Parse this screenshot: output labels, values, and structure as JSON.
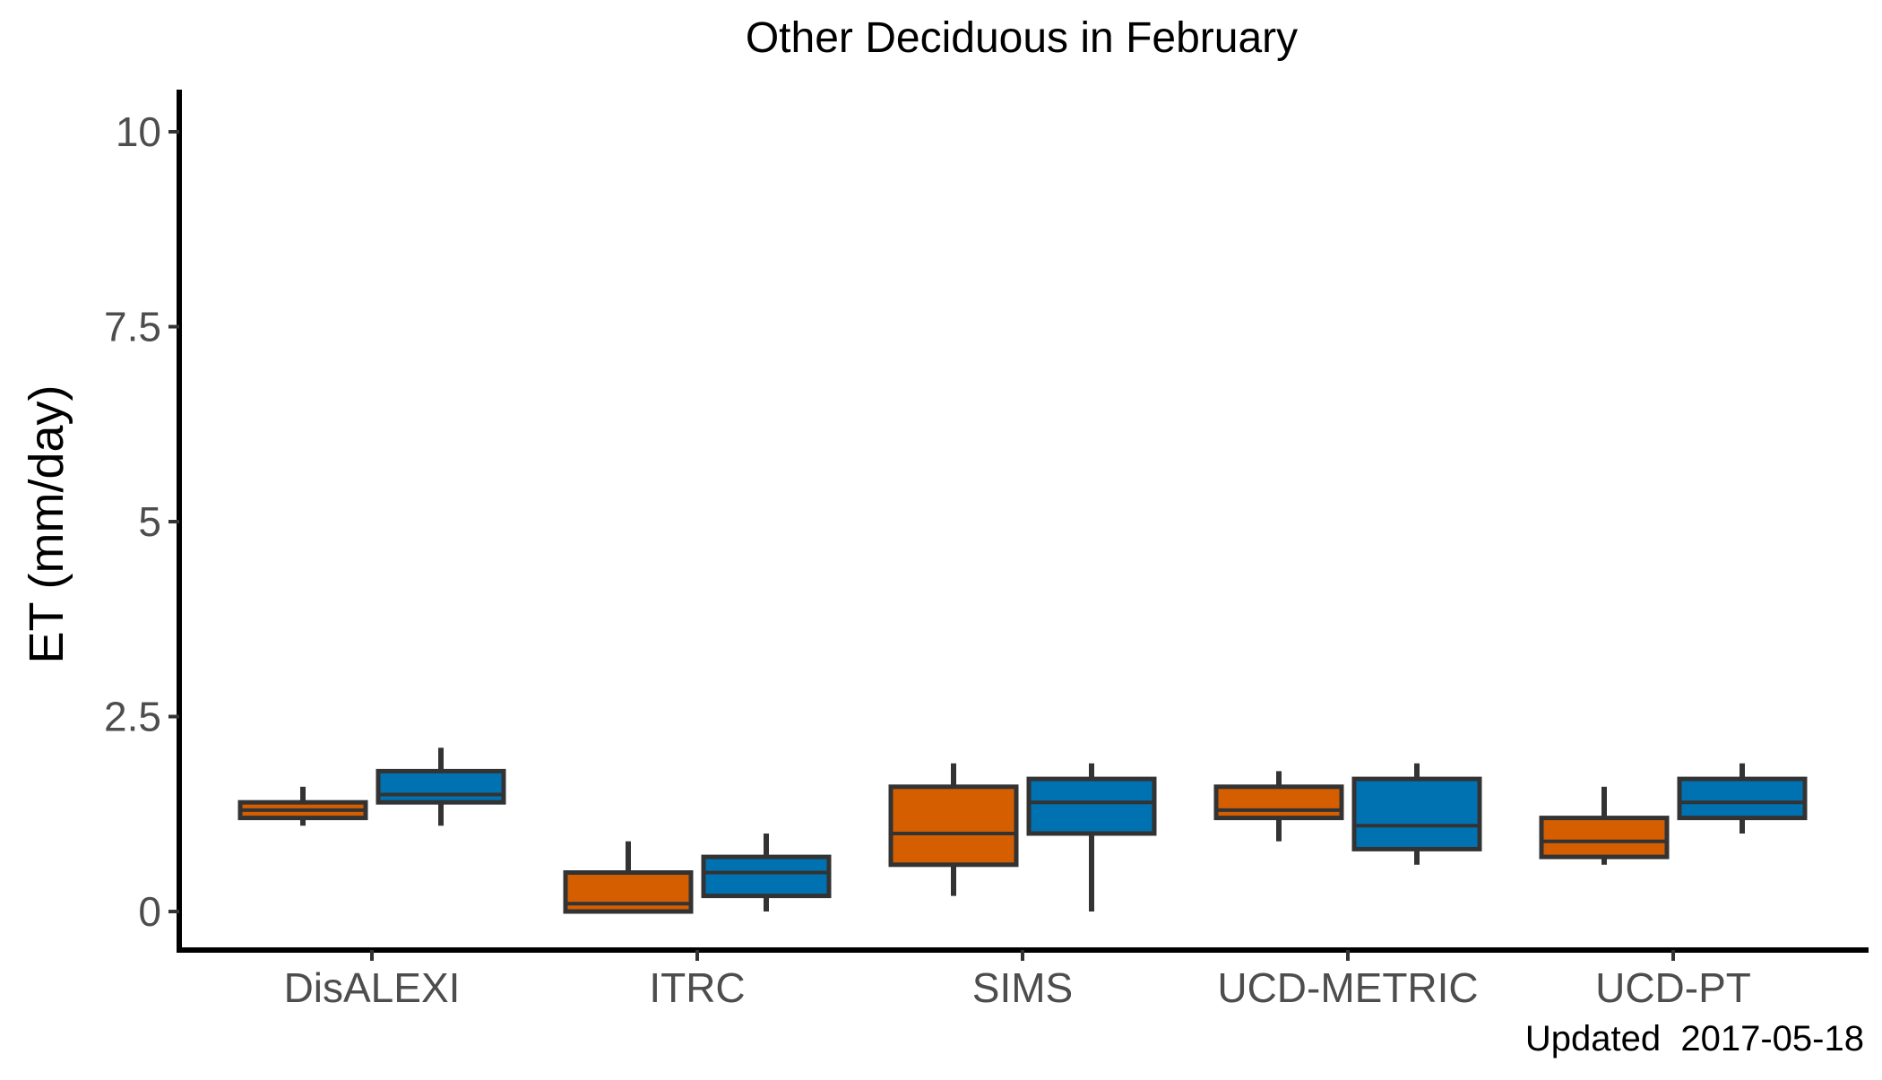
{
  "chart_data": {
    "type": "box",
    "title": "Other Deciduous in February",
    "ylabel": "ET (mm/day)",
    "xlabel": "",
    "ylim": [
      -0.5,
      10.5
    ],
    "yticks": [
      0,
      2.5,
      5,
      7.5,
      10
    ],
    "ytick_labels": [
      "0",
      "2.5",
      "5",
      "7.5",
      "10"
    ],
    "grid": false,
    "legend": "none",
    "categories": [
      "DisALEXI",
      "ITRC",
      "SIMS",
      "UCD-METRIC",
      "UCD-PT"
    ],
    "series": [
      {
        "color": "#D55E00",
        "boxes": [
          {
            "min": 1.1,
            "q1": 1.2,
            "median": 1.3,
            "q3": 1.4,
            "max": 1.6
          },
          {
            "min": 0.0,
            "q1": 0.0,
            "median": 0.1,
            "q3": 0.5,
            "max": 0.9
          },
          {
            "min": 0.2,
            "q1": 0.6,
            "median": 1.0,
            "q3": 1.6,
            "max": 1.9
          },
          {
            "min": 0.9,
            "q1": 1.2,
            "median": 1.3,
            "q3": 1.6,
            "max": 1.8
          },
          {
            "min": 0.6,
            "q1": 0.7,
            "median": 0.9,
            "q3": 1.2,
            "max": 1.6
          }
        ]
      },
      {
        "color": "#0072B2",
        "boxes": [
          {
            "min": 1.1,
            "q1": 1.4,
            "median": 1.5,
            "q3": 1.8,
            "max": 2.1
          },
          {
            "min": 0.0,
            "q1": 0.2,
            "median": 0.5,
            "q3": 0.7,
            "max": 1.0
          },
          {
            "min": 0.0,
            "q1": 1.0,
            "median": 1.4,
            "q3": 1.7,
            "max": 1.9
          },
          {
            "min": 0.6,
            "q1": 0.8,
            "median": 1.1,
            "q3": 1.7,
            "max": 1.9
          },
          {
            "min": 1.0,
            "q1": 1.2,
            "median": 1.4,
            "q3": 1.7,
            "max": 1.9
          }
        ]
      }
    ],
    "caption": "Updated  2017-05-18"
  }
}
